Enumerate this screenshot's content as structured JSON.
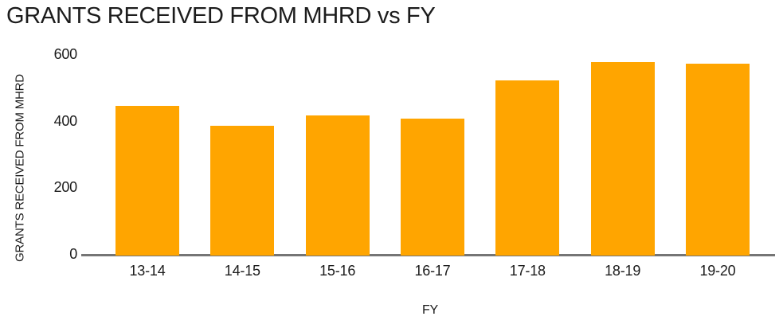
{
  "title": "GRANTS RECEIVED FROM MHRD vs FY",
  "chart_data": {
    "type": "bar",
    "title": "GRANTS RECEIVED FROM MHRD vs FY",
    "categories": [
      "13-14",
      "14-15",
      "15-16",
      "16-17",
      "17-18",
      "18-19",
      "19-20"
    ],
    "values": [
      450,
      390,
      420,
      410,
      525,
      580,
      575
    ],
    "xlabel": "FY",
    "ylabel": "GRANTS RECEIVED FROM MHRD",
    "yticks": [
      0,
      200,
      400,
      600
    ],
    "ylim": [
      0,
      600
    ],
    "grid": false,
    "legend": false,
    "colors": {
      "bar": "#FFA500",
      "axis_line": "#757575",
      "text": "#1C1C1C",
      "background": "#FFFFFF"
    }
  }
}
